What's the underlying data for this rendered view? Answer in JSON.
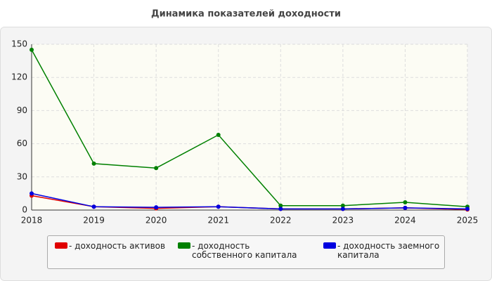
{
  "chart_data": {
    "type": "line",
    "title": "Динамика показателей доходности",
    "x": [
      2018,
      2019,
      2020,
      2021,
      2022,
      2023,
      2024,
      2025
    ],
    "series": [
      {
        "name": "- доходность активов",
        "color": "#e00000",
        "values": [
          13,
          3,
          1.5,
          3,
          1,
          1,
          2,
          0.5
        ]
      },
      {
        "name": "- доходность собственного капитала",
        "color": "#008000",
        "values": [
          145,
          42,
          38,
          68,
          4,
          4,
          7,
          3
        ]
      },
      {
        "name": "- доходность заемного капитала",
        "color": "#0000e0",
        "values": [
          15,
          3,
          2.5,
          3,
          1,
          1,
          2,
          1
        ]
      }
    ],
    "xlim": [
      2018,
      2025
    ],
    "xticks": [
      2018,
      2019,
      2020,
      2021,
      2022,
      2023,
      2024,
      2025
    ],
    "ylim": [
      0,
      150
    ],
    "yticks": [
      0,
      30,
      60,
      90,
      120,
      150
    ],
    "grid": true
  }
}
